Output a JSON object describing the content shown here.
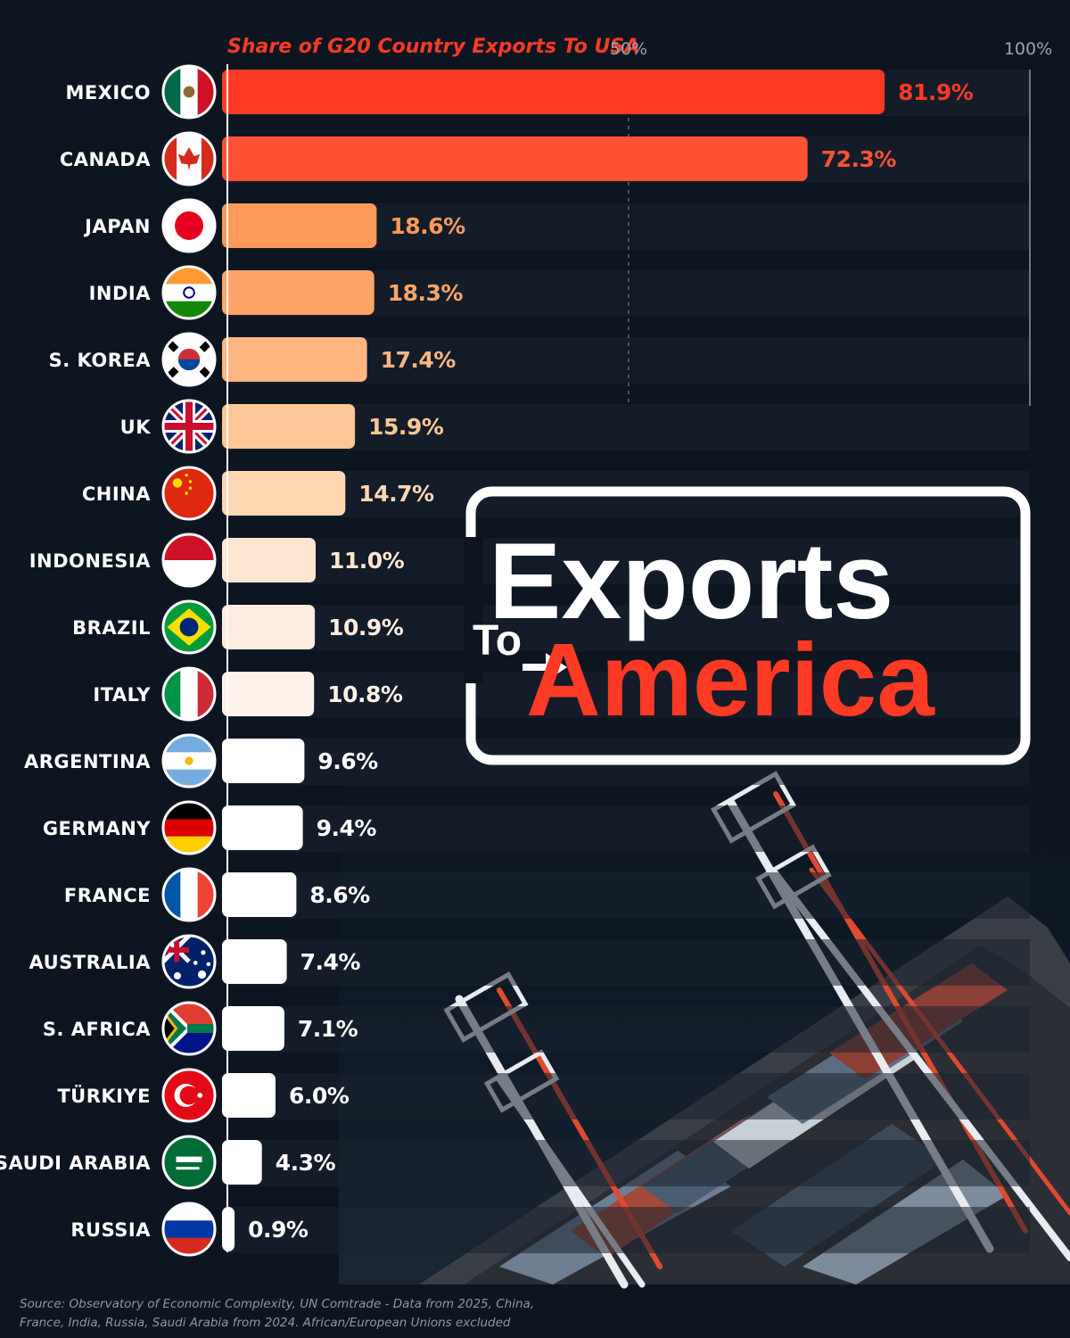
{
  "chart_data": {
    "type": "bar",
    "orientation": "horizontal",
    "title": "Share of G20 Country Exports To USA",
    "x_ticks": [
      "50%",
      "100%"
    ],
    "xlim": [
      0,
      100
    ],
    "unit": "%",
    "categories": [
      "MEXICO",
      "CANADA",
      "JAPAN",
      "INDIA",
      "S. KOREA",
      "UK",
      "CHINA",
      "INDONESIA",
      "BRAZIL",
      "ITALY",
      "ARGENTINA",
      "GERMANY",
      "FRANCE",
      "AUSTRALIA",
      "S. AFRICA",
      "TÜRKIYE",
      "SAUDI ARABIA",
      "RUSSIA"
    ],
    "values": [
      81.9,
      72.3,
      18.6,
      18.3,
      17.4,
      15.9,
      14.7,
      11.0,
      10.9,
      10.8,
      9.6,
      9.4,
      8.6,
      7.4,
      7.1,
      6.0,
      4.3,
      0.9
    ],
    "value_labels": [
      "81.9%",
      "72.3%",
      "18.6%",
      "18.3%",
      "17.4%",
      "15.9%",
      "14.7%",
      "11.0%",
      "10.9%",
      "10.8%",
      "9.6%",
      "9.4%",
      "8.6%",
      "7.4%",
      "7.1%",
      "6.0%",
      "4.3%",
      "0.9%"
    ],
    "colors": [
      "#ff3a24",
      "#ff5233",
      "#ff9a5a",
      "#ffa567",
      "#ffb67f",
      "#ffc796",
      "#ffd8b3",
      "#ffe6d0",
      "#ffece0",
      "#fff2ea",
      "#ffffff",
      "#ffffff",
      "#ffffff",
      "#ffffff",
      "#ffffff",
      "#ffffff",
      "#ffffff",
      "#ffffff"
    ],
    "grid": false,
    "legend": "none"
  },
  "flags": [
    "mexico-flag",
    "canada-flag",
    "japan-flag",
    "india-flag",
    "south-korea-flag",
    "uk-flag",
    "china-flag",
    "indonesia-flag",
    "brazil-flag",
    "italy-flag",
    "argentina-flag",
    "germany-flag",
    "france-flag",
    "australia-flag",
    "south-africa-flag",
    "turkiye-flag",
    "saudi-arabia-flag",
    "russia-flag"
  ],
  "logo": {
    "line1": "Exports",
    "to": "To",
    "line2": "America",
    "accent": "#ff3a24"
  },
  "source": "Source: Observatory of Economic Complexity, UN Comtrade - Data from 2025, China, France, India, Russia, Saudi Arabia from 2024. African/European Unions excluded"
}
